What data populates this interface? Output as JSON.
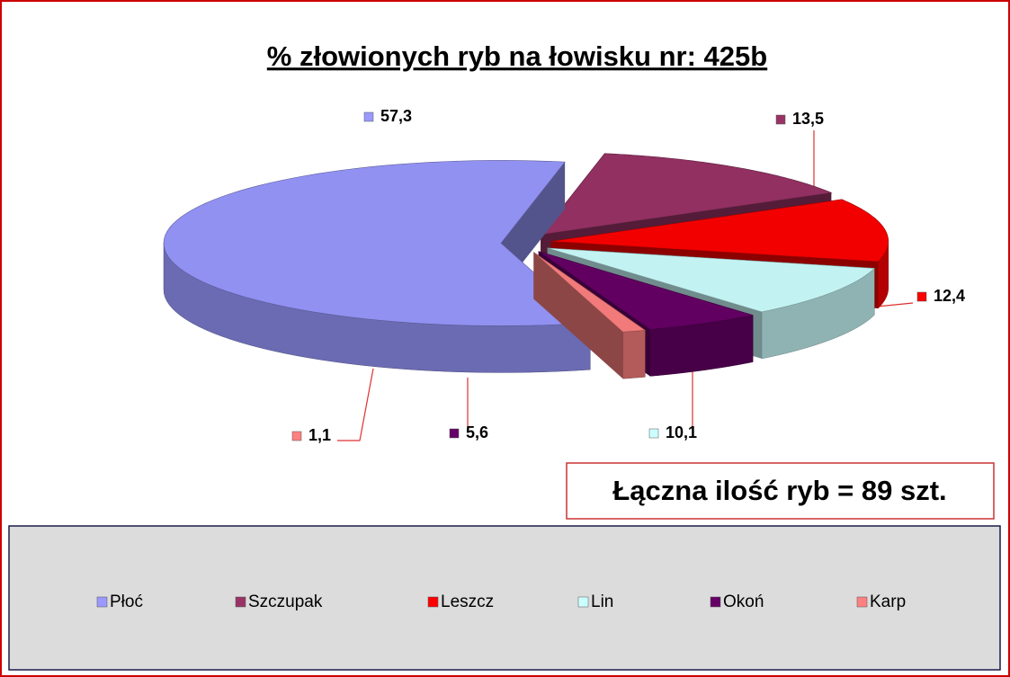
{
  "chart_data": {
    "type": "pie3d",
    "title": "% złowionych ryb na łowisku nr: 425b",
    "annotation": "Łączna ilość ryb = 89 szt.",
    "categories": [
      "Płoć",
      "Szczupak",
      "Leszcz",
      "Lin",
      "Okoń",
      "Karp"
    ],
    "values": [
      57.3,
      13.5,
      12.4,
      10.1,
      5.6,
      1.1
    ],
    "value_labels": [
      "57,3",
      "13,5",
      "12,4",
      "10,1",
      "5,6",
      "1,1"
    ],
    "colors": [
      "#9999ff",
      "#993366",
      "#ff0000",
      "#ccffff",
      "#660066",
      "#ff8080"
    ],
    "legend": "bottom"
  }
}
